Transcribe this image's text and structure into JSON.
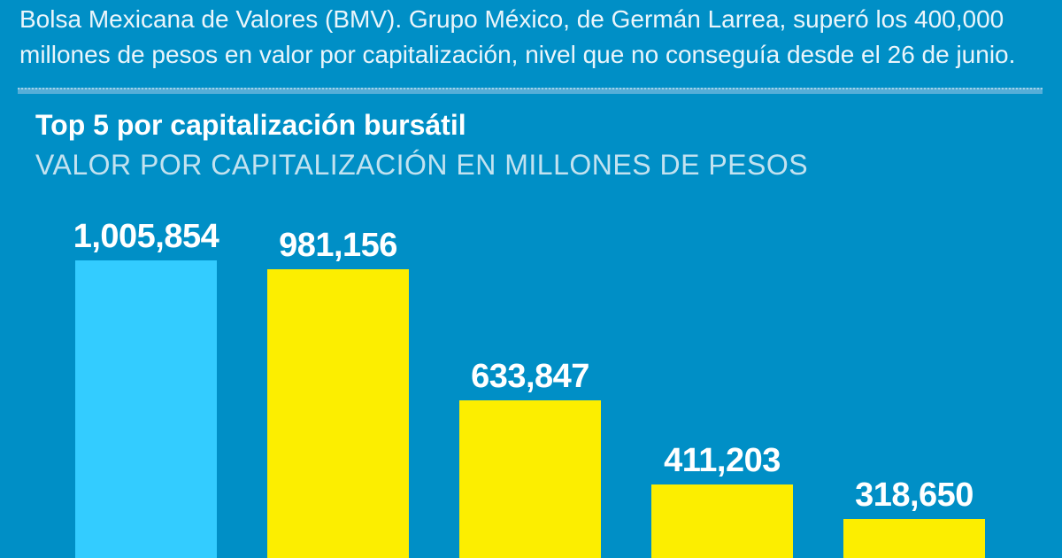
{
  "page": {
    "background_color": "#008FC6",
    "intro_text_color": "#EAF5FB",
    "divider_color": "#55AED8"
  },
  "intro": {
    "line1": "Bolsa Mexicana de Valores (BMV). Grupo México, de Germán Larrea, superó los 400,000",
    "line2": "millones de pesos en valor por capitalización, nivel que no conseguía desde el 26 de junio."
  },
  "chart_data": {
    "type": "bar",
    "orientation": "vertical",
    "title": "Top 5 por capitalización bursátil",
    "subtitle": "VALOR POR CAPITALIZACIÓN EN MILLONES DE PESOS",
    "unit": "millones de pesos",
    "values": [
      1005854,
      981156,
      633847,
      411203,
      318650
    ],
    "value_labels": [
      "1,005,854",
      "981,156",
      "633,847",
      "411,203",
      "318,650"
    ],
    "bar_colors": [
      "#33CCFF",
      "#FCEE00",
      "#FCEE00",
      "#FCEE00",
      "#FCEE00"
    ],
    "highlight_color": "#33CCFF",
    "default_bar_color": "#FCEE00",
    "label_color": "#FFFFFF",
    "title_color": "#FFFFFF",
    "subtitle_color": "#C2E2F0",
    "ylim": [
      0,
      1005854
    ],
    "grid": false,
    "legend": false,
    "category_axis_labels_visible": false,
    "bars_cropped_at_bottom": true,
    "sorted": "descending"
  }
}
